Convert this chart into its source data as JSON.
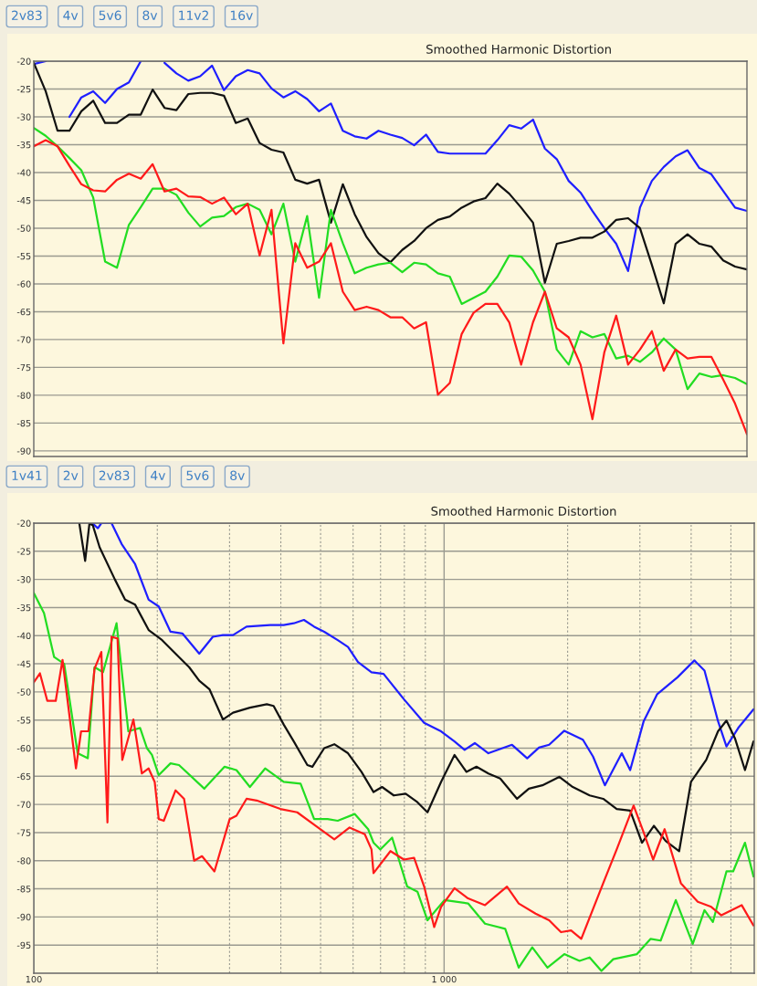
{
  "chart_data": [
    {
      "type": "line",
      "title": "Smoothed Harmonic Distortion",
      "annotations": [
        "2v83",
        "4v",
        "5v6",
        "8v",
        "11v2",
        "16v"
      ],
      "tick_labels": "y",
      "grid": "y",
      "categories": [
        null,
        null,
        null,
        null,
        null,
        null,
        null,
        null,
        null,
        null,
        null,
        null,
        null,
        null,
        null,
        null,
        null,
        null,
        null,
        null,
        null,
        null,
        null,
        null,
        null,
        null,
        null,
        null,
        null,
        null,
        null,
        null,
        null,
        null,
        null,
        null,
        null,
        null,
        null,
        null,
        null,
        null,
        null,
        null,
        null,
        null,
        null,
        null,
        null,
        null,
        null,
        null,
        null,
        null,
        null,
        null,
        null,
        null,
        null,
        null,
        null
      ],
      "ylim": [
        -91,
        -20
      ],
      "yticks": [
        -20,
        -25,
        -30,
        -35,
        -40,
        -45,
        -50,
        -55,
        -60,
        -65,
        -70,
        -75,
        -80,
        -85,
        -90
      ],
      "series": [
        {
          "color": "#1f1fff",
          "values": [
            -20.5,
            -20,
            null,
            -30,
            -26.5,
            -25.4,
            -27.5,
            -25,
            -23.8,
            -20,
            null,
            -20.3,
            -22.2,
            -23.5,
            -22.7,
            -20.8,
            -25.2,
            -22.7,
            -21.6,
            -22.2,
            -24.9,
            -26.5,
            -25.4,
            -26.8,
            -29.0,
            -27.6,
            -32.5,
            -33.5,
            -33.9,
            -32.5,
            -33.2,
            -33.8,
            -35.1,
            -33.2,
            -36.3,
            -36.6,
            -36.6,
            -36.6,
            -36.6,
            -34.2,
            -31.5,
            -32.1,
            -30.5,
            -35.7,
            -37.6,
            -41.5,
            -43.6,
            -46.9,
            -50,
            -52.8,
            -57.7,
            -46.3,
            -41.5,
            -39,
            -37.1,
            -36,
            -39.2,
            -40.3,
            -43.3,
            -46.3,
            -46.9
          ]
        },
        {
          "color": "#111111",
          "values": [
            -20.3,
            -25.4,
            -32.5,
            -32.5,
            -29,
            -27.1,
            -31.1,
            -31.1,
            -29.6,
            -29.6,
            -25.1,
            -28.4,
            -28.8,
            -25.9,
            -25.7,
            -25.7,
            -26.2,
            -31.1,
            -30.3,
            -34.7,
            -35.9,
            -36.4,
            -41.3,
            -42,
            -41.3,
            -49,
            -42.1,
            -47.5,
            -51.6,
            -54.5,
            -56.1,
            -53.9,
            -52.3,
            -50,
            -48.5,
            -47.9,
            -46.3,
            -45.2,
            -44.6,
            -42,
            -43.8,
            -46.3,
            -49,
            -59.8,
            -52.8,
            -52.3,
            -51.7,
            -51.7,
            -50.6,
            -48.5,
            -48.2,
            -50,
            -56.6,
            -63.5,
            -52.8,
            -51.1,
            -52.8,
            -53.3,
            -55.8,
            -56.9,
            -57.4
          ]
        },
        {
          "color": "#22dd22",
          "values": [
            -32.0,
            -33.4,
            -35.3,
            -37.4,
            -39.6,
            -44.5,
            -56.0,
            -57.1,
            -49.4,
            -46.2,
            -42.9,
            -42.9,
            -44,
            -47.2,
            -49.7,
            -48.1,
            -47.8,
            -46.2,
            -45.6,
            -46.7,
            -51.1,
            -45.6,
            -56,
            -47.8,
            -62.5,
            -46.7,
            -52.7,
            -58.1,
            -57.1,
            -56.5,
            -56.2,
            -57.9,
            -56.2,
            -56.5,
            -58.1,
            -58.7,
            -63.6,
            -62.5,
            -61.4,
            -58.7,
            -54.9,
            -55.1,
            -57.6,
            -61.4,
            -71.8,
            -74.5,
            -68.5,
            -69.6,
            -69,
            -73.4,
            -72.9,
            -74,
            -72.3,
            -69.8,
            -71.8,
            -78.9,
            -76.1,
            -76.7,
            -76.4,
            -76.9,
            -78
          ]
        },
        {
          "color": "#ff1a1a",
          "values": [
            -35.3,
            -34.2,
            -35.3,
            -38.8,
            -42.1,
            -43.2,
            -43.4,
            -41.3,
            -40.2,
            -41.1,
            -38.5,
            -43.4,
            -42.9,
            -44.3,
            -44.4,
            -45.6,
            -44.5,
            -47.5,
            -45.6,
            -54.9,
            -46.7,
            -70.7,
            -52.7,
            -57.1,
            -56,
            -52.7,
            -61.4,
            -64.7,
            -64.1,
            -64.7,
            -66,
            -66,
            -68,
            -66.9,
            -79.9,
            -77.8,
            -69,
            -65.2,
            -63.6,
            -63.6,
            -66.9,
            -74.5,
            -66.9,
            -61.4,
            -68,
            -69.6,
            -74.5,
            -84.3,
            -72.3,
            -65.7,
            -74.5,
            -71.8,
            -68.5,
            -75.6,
            -71.8,
            -73.4,
            -73.1,
            -73.1,
            -77.2,
            -81.5,
            -87
          ]
        }
      ]
    },
    {
      "type": "line",
      "title": "Smoothed Harmonic Distortion",
      "annotations": [
        "1v41",
        "2v",
        "2v83",
        "4v",
        "5v6",
        "8v"
      ],
      "grid": true,
      "log": "x",
      "xlim": [
        100,
        5700
      ],
      "xticks": [
        100,
        {
          "value": 1000,
          "label": "1 000"
        }
      ],
      "ylim": [
        -100,
        -20
      ],
      "yticks": [
        -20,
        -25,
        -30,
        -35,
        -40,
        -45,
        -50,
        -55,
        -60,
        -65,
        -70,
        -75,
        -80,
        -85,
        -90,
        -95
      ],
      "series": [
        {
          "color": "#1f1fff",
          "x": [
            139.3,
            143.3,
            146.1,
            154.7,
            163.7,
            176.6,
            190.5,
            201.6,
            215.4,
            230.2,
            253.1,
            273.1,
            289,
            305.9,
            330,
            376.8,
            406.5,
            430.2,
            455.3,
            482.2,
            510.3,
            550.5,
            583.1,
            616.7,
            665.3,
            712,
            798,
            894,
            983,
            1060,
            1122,
            1188,
            1282,
            1464,
            1594,
            1703,
            1803,
            1963,
            2179,
            2307,
            2465,
            2710,
            2841,
            3065,
            3306,
            3705,
            4073,
            4311,
            4651,
            4877,
            5211,
            5675
          ],
          "values": [
            -20.1,
            -20.9,
            -20,
            -20,
            -23.7,
            -27.3,
            -33.6,
            -34.8,
            -39.3,
            -39.6,
            -43.2,
            -40.2,
            -39.9,
            -39.9,
            -38.4,
            -38.1,
            -38.1,
            -37.8,
            -37.2,
            -38.4,
            -39.3,
            -40.8,
            -42,
            -44.7,
            -46.5,
            -46.8,
            -51.3,
            -55.5,
            -57,
            -58.8,
            -60.3,
            -59.1,
            -60.9,
            -59.4,
            -61.8,
            -59.9,
            -59.4,
            -56.9,
            -58.5,
            -61.5,
            -66.6,
            -60.9,
            -63.9,
            -55.2,
            -50.4,
            -47.4,
            -44.4,
            -46.2,
            -55.2,
            -59.7,
            -56.4,
            -53.1
          ]
        },
        {
          "color": "#111111",
          "x": [
            129.1,
            133.4,
            136.7,
            139.3,
            144.7,
            157.6,
            166.9,
            176.6,
            190.5,
            205.5,
            221.6,
            239.1,
            253.1,
            267.9,
            289,
            305.9,
            336.3,
            369.8,
            384.1,
            406.5,
            430.2,
            464.2,
            477.5,
            510.3,
            540,
            583.1,
            628.8,
            673,
            706,
            754,
            806,
            861,
            911,
            983,
            1060,
            1133,
            1199,
            1282,
            1370,
            1506,
            1609,
            1736,
            1908,
            2059,
            2263,
            2442,
            2634,
            2841,
            3036,
            3245,
            3467,
            3740,
            3996,
            4352,
            4651,
            4877,
            5112,
            5411,
            5675
          ],
          "values": [
            -20,
            -26.7,
            -20,
            -20.4,
            -24.3,
            -30,
            -33.6,
            -34.5,
            -39,
            -40.8,
            -43.2,
            -45.6,
            -48,
            -49.5,
            -54.9,
            -53.7,
            -52.8,
            -52.2,
            -52.5,
            -55.8,
            -58.8,
            -63,
            -63.3,
            -60,
            -59.3,
            -60.9,
            -64.2,
            -67.8,
            -66.9,
            -68.4,
            -68.1,
            -69.6,
            -71.4,
            -66,
            -61.2,
            -64.2,
            -63.3,
            -64.5,
            -65.4,
            -69,
            -67.2,
            -66.6,
            -65.1,
            -66.9,
            -68.4,
            -69,
            -70.8,
            -71.1,
            -76.8,
            -73.8,
            -76.5,
            -78.3,
            -66,
            -62.1,
            -57,
            -55.1,
            -58.2,
            -63.9,
            -58.8
          ]
        },
        {
          "color": "#22dd22",
          "x": [
            100,
            105.9,
            112.1,
            118.6,
            127.9,
            135.4,
            140.6,
            147.5,
            159.1,
            170,
            181.6,
            188.7,
            194.1,
            201.6,
            215.4,
            225.9,
            260.4,
            291.7,
            311.8,
            336.3,
            366.3,
            406.5,
            446.9,
            482.2,
            520,
            550.5,
            605.3,
            653,
            673,
            699,
            747,
            813,
            861,
            911,
            1002,
            1144,
            1258,
            1409,
            1520,
            1640,
            1786,
            1963,
            2138,
            2263,
            2418,
            2584,
            2951,
            3184,
            3371,
            3670,
            4036,
            4311,
            4519,
            4877,
            5063,
            5411,
            5675
          ],
          "values": [
            -32.4,
            -36,
            -43.8,
            -45,
            -60.9,
            -61.8,
            -45.6,
            -46.5,
            -37.8,
            -57,
            -56.4,
            -60,
            -61.2,
            -64.8,
            -62.7,
            -63,
            -67.2,
            -63.3,
            -63.9,
            -66.9,
            -63.6,
            -66,
            -66.3,
            -72.6,
            -72.6,
            -72.9,
            -71.7,
            -74.4,
            -76.8,
            -78,
            -75.9,
            -84.6,
            -85.5,
            -90.6,
            -87,
            -87.6,
            -91.2,
            -92.1,
            -99,
            -95.4,
            -99,
            -96.6,
            -97.8,
            -97.2,
            -99.6,
            -97.5,
            -96.6,
            -93.9,
            -94.2,
            -87,
            -94.8,
            -88.8,
            -90.9,
            -81.9,
            -81.9,
            -76.8,
            -82.8
          ]
        },
        {
          "color": "#ff1a1a",
          "x": [
            100,
            103.5,
            107.9,
            113.1,
            117.5,
            126.7,
            130.4,
            135.9,
            140.6,
            146.1,
            151.2,
            154.7,
            160,
            164.3,
            174.9,
            183.4,
            190.5,
            197.1,
            201.6,
            207.4,
            221.6,
            232.4,
            246,
            257,
            275.6,
            300.2,
            311.8,
            330,
            349.3,
            398.9,
            438.5,
            486.7,
            540,
            588.3,
            640.7,
            665.3,
            673,
            740,
            798,
            845,
            894,
            946,
            983,
            1060,
            1144,
            1258,
            1423,
            1520,
            1671,
            1803,
            1927,
            2039,
            2159,
            2442,
            2634,
            2896,
            3065,
            3232,
            3447,
            3776,
            4152,
            4477,
            4739,
            5311,
            5675
          ],
          "values": [
            -48.3,
            -46.7,
            -51.6,
            -51.6,
            -44.3,
            -63.6,
            -57,
            -57,
            -45.9,
            -42.9,
            -73.2,
            -40.2,
            -40.5,
            -62.1,
            -54.9,
            -64.5,
            -63.6,
            -66,
            -72.6,
            -72.9,
            -67.5,
            -69,
            -80,
            -79.2,
            -81.9,
            -72.6,
            -72,
            -69,
            -69.3,
            -70.8,
            -71.4,
            -73.8,
            -76.2,
            -74.1,
            -75.3,
            -78,
            -82.2,
            -78.3,
            -79.8,
            -79.5,
            -84.6,
            -91.8,
            -88.2,
            -84.9,
            -86.7,
            -87.9,
            -84.6,
            -87.6,
            -89.4,
            -90.6,
            -92.7,
            -92.4,
            -93.9,
            -84,
            -78,
            -70.2,
            -75,
            -79.8,
            -74.4,
            -84,
            -87.3,
            -88.2,
            -89.7,
            -87.9,
            -91.5
          ]
        }
      ]
    }
  ]
}
